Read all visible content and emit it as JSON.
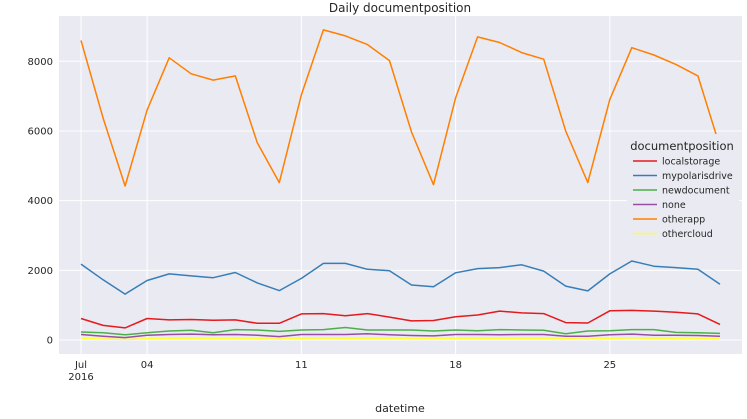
{
  "chart_data": {
    "type": "line",
    "title": "Daily documentposition",
    "xlabel": "datetime",
    "ylabel": "",
    "x": [
      "2016-07-01",
      "2016-07-02",
      "2016-07-03",
      "2016-07-04",
      "2016-07-05",
      "2016-07-06",
      "2016-07-07",
      "2016-07-08",
      "2016-07-09",
      "2016-07-10",
      "2016-07-11",
      "2016-07-12",
      "2016-07-13",
      "2016-07-14",
      "2016-07-15",
      "2016-07-16",
      "2016-07-17",
      "2016-07-18",
      "2016-07-19",
      "2016-07-20",
      "2016-07-21",
      "2016-07-22",
      "2016-07-23",
      "2016-07-24",
      "2016-07-25",
      "2016-07-26",
      "2016-07-27",
      "2016-07-28",
      "2016-07-29",
      "2016-07-30"
    ],
    "xticks": [
      {
        "date": "2016-07-01",
        "label": "Jul",
        "sublabel": "2016"
      },
      {
        "date": "2016-07-04",
        "label": "04",
        "sublabel": ""
      },
      {
        "date": "2016-07-11",
        "label": "11",
        "sublabel": ""
      },
      {
        "date": "2016-07-18",
        "label": "18",
        "sublabel": ""
      },
      {
        "date": "2016-07-25",
        "label": "25",
        "sublabel": ""
      }
    ],
    "yticks": [
      0,
      2000,
      4000,
      6000,
      8000
    ],
    "ylim": [
      -400,
      9300
    ],
    "xlim": [
      "2016-06-30",
      "2016-07-31"
    ],
    "grid": true,
    "background": "#eaeaf2",
    "legend": {
      "title": "documentposition",
      "placement": "right"
    },
    "series": [
      {
        "name": "localstorage",
        "color": "#e41a1c",
        "values": [
          620,
          420,
          350,
          620,
          580,
          590,
          570,
          580,
          480,
          480,
          750,
          760,
          700,
          760,
          660,
          550,
          560,
          670,
          720,
          830,
          780,
          760,
          500,
          490,
          840,
          850,
          830,
          800,
          750,
          450
        ]
      },
      {
        "name": "mypolarisdrive",
        "color": "#377eb8",
        "values": [
          2180,
          1730,
          1320,
          1710,
          1900,
          1840,
          1790,
          1940,
          1640,
          1420,
          1770,
          2200,
          2200,
          2030,
          1990,
          1580,
          1530,
          1930,
          2050,
          2080,
          2160,
          1980,
          1550,
          1410,
          1900,
          2270,
          2120,
          2080,
          2030,
          1600
        ]
      },
      {
        "name": "newdocument",
        "color": "#4daf4a",
        "values": [
          230,
          210,
          150,
          210,
          260,
          280,
          210,
          300,
          290,
          250,
          290,
          300,
          360,
          290,
          290,
          290,
          260,
          290,
          270,
          300,
          290,
          280,
          180,
          260,
          270,
          300,
          300,
          220,
          210,
          190
        ]
      },
      {
        "name": "none",
        "color": "#984ea3",
        "values": [
          160,
          110,
          70,
          140,
          160,
          170,
          150,
          160,
          140,
          100,
          160,
          160,
          160,
          180,
          150,
          130,
          120,
          160,
          160,
          150,
          160,
          160,
          110,
          110,
          150,
          170,
          140,
          140,
          130,
          110
        ]
      },
      {
        "name": "otherapp",
        "color": "#ff7f00",
        "values": [
          8600,
          6370,
          4420,
          6600,
          8100,
          7640,
          7460,
          7580,
          5660,
          4520,
          7040,
          8900,
          8730,
          8480,
          8020,
          5970,
          4460,
          6950,
          8700,
          8540,
          8250,
          8060,
          6000,
          4520,
          6900,
          8390,
          8180,
          7910,
          7580,
          5540
        ]
      },
      {
        "name": "othercloud",
        "color": "#ffff33",
        "values": [
          50,
          30,
          20,
          40,
          50,
          50,
          40,
          50,
          40,
          30,
          50,
          60,
          50,
          50,
          50,
          40,
          40,
          50,
          50,
          50,
          50,
          50,
          40,
          30,
          50,
          60,
          50,
          50,
          40,
          40
        ]
      }
    ]
  }
}
